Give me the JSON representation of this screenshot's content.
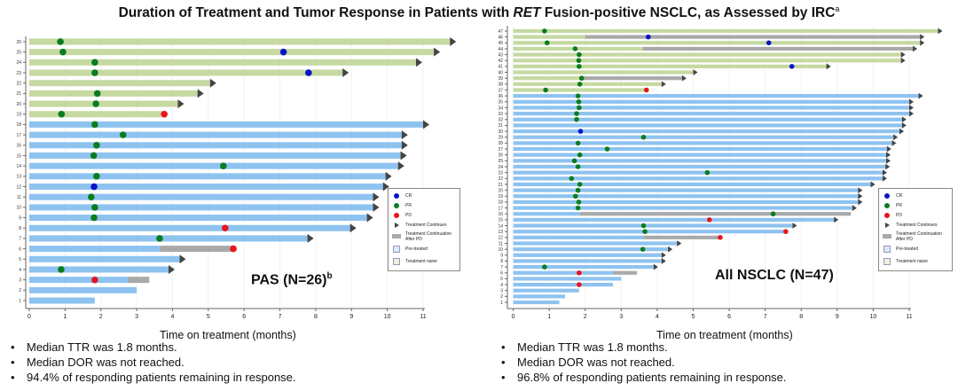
{
  "title": {
    "pre": "Duration of Treatment and Tumor Response in Patients with ",
    "italic": "RET",
    "post": " Fusion-positive NSCLC, as Assessed by IRC",
    "sup": "a"
  },
  "colors": {
    "pretreated": "#8ec3f0",
    "naive": "#c5d9a1",
    "continuation": "#a9a9a9",
    "CR": "#0a14c8",
    "PR": "#0a7d1e",
    "PD": "#e8141e",
    "arrow": "#444444"
  },
  "legend": {
    "CR": "CR",
    "PR": "PR",
    "PD": "PD",
    "continues": "Treatment Continues",
    "continuation": "Treatment Continuation After PD",
    "pretreated": "Pre-treated",
    "naive": "Treatment naive"
  },
  "chart_data": [
    {
      "type": "swimmer",
      "panel_label": "PAS (N=26)",
      "panel_sup": "b",
      "xlabel": "Time on treatment (months)",
      "xlim": [
        0,
        11
      ],
      "xticks": [
        0,
        1,
        2,
        3,
        4,
        5,
        6,
        7,
        8,
        9,
        10,
        11
      ],
      "patients": [
        [
          26,
          "naive",
          11.75,
          true,
          null,
          [
            [
              0.87,
              "PR"
            ]
          ]
        ],
        [
          25,
          "naive",
          11.3,
          true,
          null,
          [
            [
              0.94,
              "PR"
            ],
            [
              7.1,
              "CR"
            ]
          ]
        ],
        [
          24,
          "naive",
          10.8,
          true,
          null,
          [
            [
              1.83,
              "PR"
            ]
          ]
        ],
        [
          23,
          "naive",
          8.75,
          true,
          null,
          [
            [
              1.83,
              "PR"
            ],
            [
              7.8,
              "CR"
            ]
          ]
        ],
        [
          22,
          "naive",
          5.05,
          true,
          null,
          []
        ],
        [
          21,
          "naive",
          4.7,
          true,
          null,
          [
            [
              1.9,
              "PR"
            ]
          ]
        ],
        [
          20,
          "naive",
          4.15,
          true,
          null,
          [
            [
              1.86,
              "PR"
            ]
          ]
        ],
        [
          19,
          "naive",
          3.77,
          false,
          null,
          [
            [
              0.9,
              "PR"
            ],
            [
              3.77,
              "PD"
            ]
          ]
        ],
        [
          18,
          "pretreated",
          11.0,
          true,
          null,
          [
            [
              1.83,
              "PR"
            ]
          ]
        ],
        [
          17,
          "pretreated",
          10.4,
          true,
          null,
          [
            [
              2.62,
              "PR"
            ]
          ]
        ],
        [
          16,
          "pretreated",
          10.4,
          true,
          null,
          [
            [
              1.88,
              "PR"
            ]
          ]
        ],
        [
          15,
          "pretreated",
          10.37,
          true,
          null,
          [
            [
              1.8,
              "PR"
            ]
          ]
        ],
        [
          14,
          "pretreated",
          10.3,
          true,
          null,
          [
            [
              5.42,
              "PR"
            ]
          ]
        ],
        [
          13,
          "pretreated",
          9.95,
          true,
          null,
          [
            [
              1.88,
              "PR"
            ]
          ]
        ],
        [
          12,
          "pretreated",
          9.88,
          true,
          null,
          [
            [
              1.81,
              "CR"
            ]
          ]
        ],
        [
          11,
          "pretreated",
          9.6,
          true,
          null,
          [
            [
              1.73,
              "PR"
            ]
          ]
        ],
        [
          10,
          "pretreated",
          9.6,
          true,
          null,
          [
            [
              1.83,
              "PR"
            ]
          ]
        ],
        [
          9,
          "pretreated",
          9.43,
          true,
          null,
          [
            [
              1.81,
              "PR"
            ]
          ]
        ],
        [
          8,
          "pretreated",
          8.96,
          true,
          null,
          [
            [
              5.47,
              "PD"
            ]
          ]
        ],
        [
          7,
          "pretreated",
          7.77,
          true,
          null,
          [
            [
              3.64,
              "PR"
            ]
          ]
        ],
        [
          6,
          "pretreated",
          5.7,
          false,
          3.65,
          [
            [
              5.7,
              "PD"
            ]
          ]
        ],
        [
          5,
          "pretreated",
          4.2,
          true,
          null,
          []
        ],
        [
          4,
          "pretreated",
          3.89,
          true,
          null,
          [
            [
              0.89,
              "PR"
            ]
          ]
        ],
        [
          3,
          "pretreated",
          3.35,
          false,
          2.75,
          [
            [
              1.83,
              "PD"
            ]
          ]
        ],
        [
          2,
          "pretreated",
          3.0,
          false,
          null,
          []
        ],
        [
          1,
          "pretreated",
          1.83,
          false,
          null,
          []
        ]
      ]
    },
    {
      "type": "swimmer",
      "panel_label": "All NSCLC (N=47)",
      "panel_sup": "",
      "xlabel": "Time on treatment (months)",
      "xlim": [
        0,
        11
      ],
      "xticks": [
        0,
        1,
        2,
        3,
        4,
        5,
        6,
        7,
        8,
        9,
        10,
        11
      ],
      "patients": [
        [
          47,
          "naive",
          11.8,
          true,
          null,
          [
            [
              0.87,
              "PR"
            ]
          ]
        ],
        [
          46,
          "naive",
          11.3,
          true,
          2.0,
          [
            [
              3.75,
              "CR"
            ]
          ]
        ],
        [
          45,
          "naive",
          11.3,
          true,
          null,
          [
            [
              0.94,
              "PR"
            ],
            [
              7.1,
              "CR"
            ]
          ]
        ],
        [
          44,
          "naive",
          11.1,
          true,
          3.6,
          [
            [
              1.72,
              "PR"
            ]
          ]
        ],
        [
          43,
          "naive",
          10.77,
          true,
          null,
          [
            [
              1.83,
              "PR"
            ]
          ]
        ],
        [
          42,
          "naive",
          10.77,
          true,
          null,
          [
            [
              1.82,
              "PR"
            ]
          ]
        ],
        [
          41,
          "naive",
          8.7,
          true,
          null,
          [
            [
              1.83,
              "PR"
            ],
            [
              7.74,
              "CR"
            ]
          ]
        ],
        [
          40,
          "naive",
          5.0,
          true,
          null,
          []
        ],
        [
          39,
          "naive",
          4.69,
          true,
          1.9,
          [
            [
              1.9,
              "PR"
            ]
          ]
        ],
        [
          38,
          "naive",
          4.12,
          true,
          null,
          [
            [
              1.85,
              "PR"
            ]
          ]
        ],
        [
          37,
          "naive",
          3.7,
          false,
          null,
          [
            [
              0.9,
              "PR"
            ],
            [
              3.7,
              "PD"
            ]
          ]
        ],
        [
          36,
          "pretreated",
          11.26,
          true,
          null,
          [
            [
              1.8,
              "PR"
            ]
          ]
        ],
        [
          35,
          "pretreated",
          11.0,
          true,
          null,
          [
            [
              1.82,
              "PR"
            ]
          ]
        ],
        [
          34,
          "pretreated",
          11.0,
          true,
          null,
          [
            [
              1.83,
              "PR"
            ]
          ]
        ],
        [
          33,
          "pretreated",
          11.0,
          true,
          null,
          [
            [
              1.76,
              "PR"
            ]
          ]
        ],
        [
          32,
          "pretreated",
          10.8,
          true,
          null,
          [
            [
              1.76,
              "PR"
            ]
          ]
        ],
        [
          31,
          "pretreated",
          10.8,
          true,
          null,
          []
        ],
        [
          30,
          "pretreated",
          10.73,
          true,
          null,
          [
            [
              1.87,
              "CR"
            ]
          ]
        ],
        [
          29,
          "pretreated",
          10.56,
          true,
          null,
          [
            [
              3.62,
              "PR"
            ]
          ]
        ],
        [
          28,
          "pretreated",
          10.52,
          true,
          null,
          [
            [
              1.8,
              "PR"
            ]
          ]
        ],
        [
          27,
          "pretreated",
          10.38,
          true,
          null,
          [
            [
              2.61,
              "PR"
            ]
          ]
        ],
        [
          26,
          "pretreated",
          10.36,
          true,
          null,
          [
            [
              1.85,
              "PR"
            ]
          ]
        ],
        [
          25,
          "pretreated",
          10.36,
          true,
          null,
          [
            [
              1.7,
              "PR"
            ]
          ]
        ],
        [
          24,
          "pretreated",
          10.34,
          true,
          null,
          [
            [
              1.8,
              "PR"
            ]
          ]
        ],
        [
          23,
          "pretreated",
          10.26,
          true,
          null,
          [
            [
              5.39,
              "PR"
            ]
          ]
        ],
        [
          22,
          "pretreated",
          10.26,
          true,
          null,
          [
            [
              1.62,
              "PR"
            ]
          ]
        ],
        [
          21,
          "pretreated",
          9.93,
          true,
          null,
          [
            [
              1.85,
              "PR"
            ]
          ]
        ],
        [
          20,
          "pretreated",
          9.58,
          true,
          null,
          [
            [
              1.8,
              "PR"
            ]
          ]
        ],
        [
          19,
          "pretreated",
          9.58,
          true,
          null,
          [
            [
              1.73,
              "PR"
            ]
          ]
        ],
        [
          18,
          "pretreated",
          9.58,
          true,
          null,
          [
            [
              1.82,
              "PR"
            ]
          ]
        ],
        [
          17,
          "pretreated",
          9.42,
          true,
          null,
          [
            [
              1.8,
              "PR"
            ]
          ]
        ],
        [
          16,
          "pretreated",
          9.38,
          false,
          1.85,
          [
            [
              7.22,
              "PR"
            ]
          ]
        ],
        [
          15,
          "pretreated",
          8.91,
          true,
          null,
          [
            [
              5.45,
              "PD"
            ]
          ]
        ],
        [
          14,
          "pretreated",
          7.76,
          true,
          null,
          [
            [
              3.62,
              "PR"
            ]
          ]
        ],
        [
          13,
          "pretreated",
          7.57,
          false,
          null,
          [
            [
              3.66,
              "PR"
            ],
            [
              7.57,
              "PD"
            ]
          ]
        ],
        [
          12,
          "pretreated",
          5.75,
          false,
          3.62,
          [
            [
              5.75,
              "PD"
            ]
          ]
        ],
        [
          11,
          "pretreated",
          4.55,
          true,
          null,
          []
        ],
        [
          10,
          "pretreated",
          4.3,
          true,
          null,
          [
            [
              3.6,
              "PR"
            ]
          ]
        ],
        [
          9,
          "pretreated",
          4.12,
          true,
          null,
          []
        ],
        [
          8,
          "pretreated",
          4.12,
          true,
          null,
          []
        ],
        [
          7,
          "pretreated",
          3.9,
          true,
          null,
          [
            [
              0.87,
              "PR"
            ]
          ]
        ],
        [
          6,
          "pretreated",
          3.44,
          false,
          2.77,
          [
            [
              1.83,
              "PD"
            ]
          ]
        ],
        [
          5,
          "pretreated",
          3.0,
          false,
          null,
          []
        ],
        [
          4,
          "pretreated",
          2.77,
          false,
          null,
          [
            [
              1.83,
              "PD"
            ]
          ]
        ],
        [
          3,
          "pretreated",
          1.83,
          false,
          null,
          []
        ],
        [
          2,
          "pretreated",
          1.44,
          false,
          null,
          []
        ],
        [
          1,
          "pretreated",
          1.28,
          false,
          null,
          []
        ]
      ]
    }
  ],
  "bullets_left": [
    "Median TTR was 1.8 months.",
    "Median DOR was not reached.",
    "94.4% of responding patients remaining in response."
  ],
  "bullets_right": [
    "Median TTR was 1.8 months.",
    "Median DOR was not reached.",
    "96.8% of responding patients remaining in response."
  ],
  "bullet_char": "•"
}
